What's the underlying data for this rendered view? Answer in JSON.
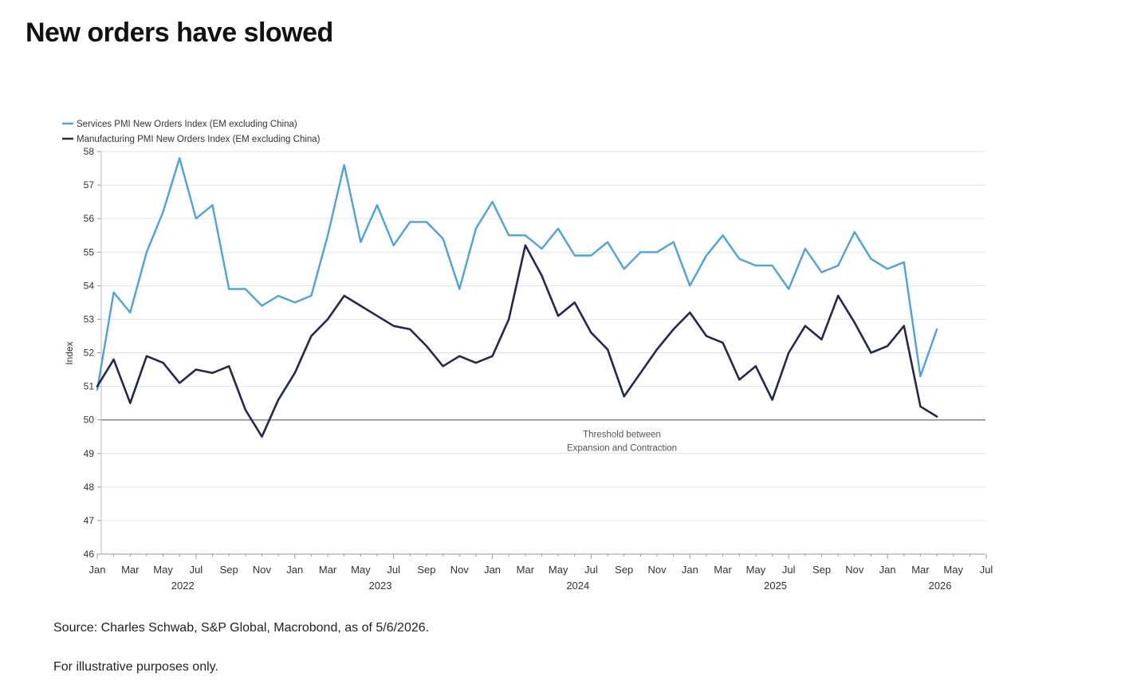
{
  "page": {
    "title": "New orders have slowed",
    "source": "Source: Charles Schwab, S&P Global, Macrobond, as of 5/6/2026.",
    "disclaimer": "For illustrative purposes only."
  },
  "chart_data": {
    "type": "line",
    "ylabel": "Index",
    "ylim": [
      46,
      58
    ],
    "yticks": [
      46,
      47,
      48,
      49,
      50,
      51,
      52,
      53,
      54,
      55,
      56,
      57,
      58
    ],
    "x_range": [
      "2022-01",
      "2026-07"
    ],
    "x_tick_labels": [
      "Jan",
      "Mar",
      "May",
      "Jul",
      "Sep",
      "Nov",
      "Jan",
      "Mar",
      "May",
      "Jul",
      "Sep",
      "Nov",
      "Jan",
      "Mar",
      "May",
      "Jul",
      "Sep",
      "Nov",
      "Jan",
      "Mar",
      "May",
      "Jul",
      "Sep",
      "Nov",
      "Jan",
      "Mar",
      "May",
      "Jul"
    ],
    "year_labels": [
      {
        "label": "2022",
        "month": "2022-06"
      },
      {
        "label": "2023",
        "month": "2023-06"
      },
      {
        "label": "2024",
        "month": "2024-06"
      },
      {
        "label": "2025",
        "month": "2025-06"
      },
      {
        "label": "2026",
        "month": "2026-04"
      }
    ],
    "grid": true,
    "legend_position": "top-left",
    "threshold": {
      "value": 50,
      "label_lines": [
        "Threshold between",
        "Expansion and Contraction"
      ]
    },
    "x": [
      "2022-01",
      "2022-02",
      "2022-03",
      "2022-04",
      "2022-05",
      "2022-06",
      "2022-07",
      "2022-08",
      "2022-09",
      "2022-10",
      "2022-11",
      "2022-12",
      "2023-01",
      "2023-02",
      "2023-03",
      "2023-04",
      "2023-05",
      "2023-06",
      "2023-07",
      "2023-08",
      "2023-09",
      "2023-10",
      "2023-11",
      "2023-12",
      "2024-01",
      "2024-02",
      "2024-03",
      "2024-04",
      "2024-05",
      "2024-06",
      "2024-07",
      "2024-08",
      "2024-09",
      "2024-10",
      "2024-11",
      "2024-12",
      "2025-01",
      "2025-02",
      "2025-03",
      "2025-04",
      "2025-05",
      "2025-06",
      "2025-07",
      "2025-08",
      "2025-09",
      "2025-10",
      "2025-11",
      "2025-12",
      "2026-01",
      "2026-02",
      "2026-03",
      "2026-04"
    ],
    "series": [
      {
        "name": "Services PMI New Orders Index (EM excluding China)",
        "color": "#4aa3df",
        "values": [
          50.9,
          53.8,
          53.2,
          55.0,
          56.2,
          57.8,
          56.0,
          56.4,
          53.9,
          53.9,
          53.4,
          53.7,
          53.5,
          53.7,
          55.5,
          57.6,
          55.3,
          56.4,
          55.2,
          55.9,
          55.9,
          55.4,
          53.9,
          55.7,
          56.5,
          55.5,
          55.5,
          55.1,
          55.7,
          54.9,
          54.9,
          55.3,
          54.5,
          55.0,
          55.0,
          55.3,
          54.0,
          54.9,
          55.5,
          54.8,
          54.6,
          54.6,
          53.9,
          55.1,
          54.4,
          54.6,
          55.6,
          54.8,
          54.5,
          54.7,
          51.3,
          52.7
        ]
      },
      {
        "name": "Manufacturing PMI New Orders Index (EM excluding China)",
        "color": "#252847",
        "values": [
          51.0,
          51.8,
          50.5,
          51.9,
          51.7,
          51.1,
          51.5,
          51.4,
          51.6,
          50.3,
          49.5,
          50.6,
          51.4,
          52.5,
          53.0,
          53.7,
          53.4,
          53.1,
          52.8,
          52.7,
          52.2,
          51.6,
          51.9,
          51.7,
          51.9,
          53.0,
          55.2,
          54.3,
          53.1,
          53.5,
          52.6,
          52.1,
          50.7,
          51.4,
          52.1,
          52.7,
          53.2,
          52.5,
          52.3,
          51.2,
          51.6,
          50.6,
          52.0,
          52.8,
          52.4,
          53.7,
          52.9,
          52.0,
          52.2,
          52.8,
          50.4,
          50.1
        ]
      }
    ]
  }
}
